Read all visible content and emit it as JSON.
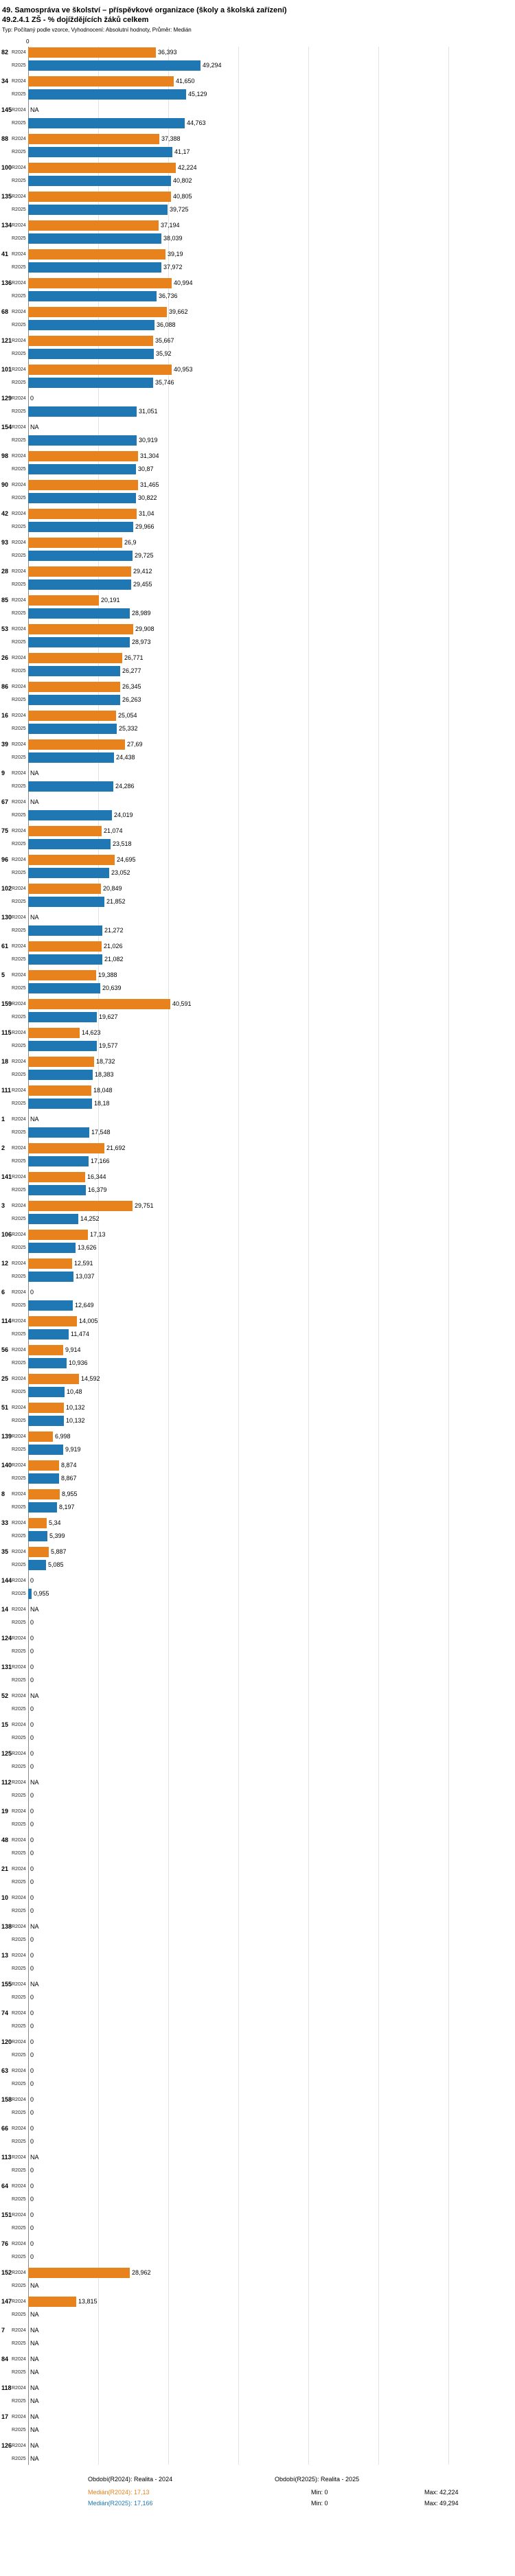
{
  "header": {
    "title_line1": "49. Samospráva ve školství – příspěvkové organizace (školy a školská zařízení)",
    "title_line2": "49.2.4.1 ZŠ - % dojíždějících žáků celkem",
    "subtitle": "Typ: Počítaný podle vzorce, Vyhodnocení: Absolutní hodnoty, Průměr: Medián"
  },
  "colors": {
    "r2024": "#e8821c",
    "r2025": "#1f77b4"
  },
  "chart_data": {
    "type": "bar",
    "orientation": "horizontal",
    "title": "49.2.4.1 ZŠ - % dojíždějících žáků celkem",
    "series_labels": [
      "R2024",
      "R2025"
    ],
    "axis_zero_label": "0",
    "na_label": "NA",
    "xlim": [
      0,
      50
    ],
    "sorted_by": "R2025 descending, NA last",
    "value_format": "czech decimal comma",
    "rows": [
      {
        "id": "82",
        "r2024": "36,393",
        "r2025": "49,294"
      },
      {
        "id": "34",
        "r2024": "41,650",
        "r2025": "45,129"
      },
      {
        "id": "145",
        "r2024": "NA",
        "r2025": "44,763"
      },
      {
        "id": "88",
        "r2024": "37,388",
        "r2025": "41,17"
      },
      {
        "id": "100",
        "r2024": "42,224",
        "r2025": "40,802"
      },
      {
        "id": "135",
        "r2024": "40,805",
        "r2025": "39,725"
      },
      {
        "id": "134",
        "r2024": "37,194",
        "r2025": "38,039"
      },
      {
        "id": "41",
        "r2024": "39,19",
        "r2025": "37,972"
      },
      {
        "id": "136",
        "r2024": "40,994",
        "r2025": "36,736"
      },
      {
        "id": "68",
        "r2024": "39,662",
        "r2025": "36,088"
      },
      {
        "id": "121",
        "r2024": "35,667",
        "r2025": "35,92"
      },
      {
        "id": "101",
        "r2024": "40,953",
        "r2025": "35,746"
      },
      {
        "id": "129",
        "r2024": "0",
        "r2025": "31,051"
      },
      {
        "id": "154",
        "r2024": "NA",
        "r2025": "30,919"
      },
      {
        "id": "98",
        "r2024": "31,304",
        "r2025": "30,87"
      },
      {
        "id": "90",
        "r2024": "31,465",
        "r2025": "30,822"
      },
      {
        "id": "42",
        "r2024": "31,04",
        "r2025": "29,966"
      },
      {
        "id": "93",
        "r2024": "26,9",
        "r2025": "29,725"
      },
      {
        "id": "28",
        "r2024": "29,412",
        "r2025": "29,455"
      },
      {
        "id": "85",
        "r2024": "20,191",
        "r2025": "28,989"
      },
      {
        "id": "53",
        "r2024": "29,908",
        "r2025": "28,973"
      },
      {
        "id": "26",
        "r2024": "26,771",
        "r2025": "26,277"
      },
      {
        "id": "86",
        "r2024": "26,345",
        "r2025": "26,263"
      },
      {
        "id": "16",
        "r2024": "25,054",
        "r2025": "25,332"
      },
      {
        "id": "39",
        "r2024": "27,69",
        "r2025": "24,438"
      },
      {
        "id": "9",
        "r2024": "NA",
        "r2025": "24,286"
      },
      {
        "id": "67",
        "r2024": "NA",
        "r2025": "24,019"
      },
      {
        "id": "75",
        "r2024": "21,074",
        "r2025": "23,518"
      },
      {
        "id": "96",
        "r2024": "24,695",
        "r2025": "23,052"
      },
      {
        "id": "102",
        "r2024": "20,849",
        "r2025": "21,852"
      },
      {
        "id": "130",
        "r2024": "NA",
        "r2025": "21,272"
      },
      {
        "id": "61",
        "r2024": "21,026",
        "r2025": "21,082"
      },
      {
        "id": "5",
        "r2024": "19,388",
        "r2025": "20,639"
      },
      {
        "id": "159",
        "r2024": "40,591",
        "r2025": "19,627"
      },
      {
        "id": "115",
        "r2024": "14,623",
        "r2025": "19,577"
      },
      {
        "id": "18",
        "r2024": "18,732",
        "r2025": "18,383"
      },
      {
        "id": "111",
        "r2024": "18,048",
        "r2025": "18,18"
      },
      {
        "id": "1",
        "r2024": "NA",
        "r2025": "17,548"
      },
      {
        "id": "2",
        "r2024": "21,692",
        "r2025": "17,166"
      },
      {
        "id": "141",
        "r2024": "16,344",
        "r2025": "16,379"
      },
      {
        "id": "3",
        "r2024": "29,751",
        "r2025": "14,252"
      },
      {
        "id": "106",
        "r2024": "17,13",
        "r2025": "13,626"
      },
      {
        "id": "12",
        "r2024": "12,591",
        "r2025": "13,037"
      },
      {
        "id": "6",
        "r2024": "0",
        "r2025": "12,649"
      },
      {
        "id": "114",
        "r2024": "14,005",
        "r2025": "11,474"
      },
      {
        "id": "56",
        "r2024": "9,914",
        "r2025": "10,936"
      },
      {
        "id": "25",
        "r2024": "14,592",
        "r2025": "10,48"
      },
      {
        "id": "51",
        "r2024": "10,132",
        "r2025": "10,132"
      },
      {
        "id": "139",
        "r2024": "6,998",
        "r2025": "9,919"
      },
      {
        "id": "140",
        "r2024": "8,874",
        "r2025": "8,867"
      },
      {
        "id": "8",
        "r2024": "8,955",
        "r2025": "8,197"
      },
      {
        "id": "33",
        "r2024": "5,34",
        "r2025": "5,399"
      },
      {
        "id": "35",
        "r2024": "5,887",
        "r2025": "5,085"
      },
      {
        "id": "144",
        "r2024": "0",
        "r2025": "0,955"
      },
      {
        "id": "14",
        "r2024": "NA",
        "r2025": "0"
      },
      {
        "id": "124",
        "r2024": "0",
        "r2025": "0"
      },
      {
        "id": "131",
        "r2024": "0",
        "r2025": "0"
      },
      {
        "id": "52",
        "r2024": "NA",
        "r2025": "0"
      },
      {
        "id": "15",
        "r2024": "0",
        "r2025": "0"
      },
      {
        "id": "125",
        "r2024": "0",
        "r2025": "0"
      },
      {
        "id": "112",
        "r2024": "NA",
        "r2025": "0"
      },
      {
        "id": "19",
        "r2024": "0",
        "r2025": "0"
      },
      {
        "id": "48",
        "r2024": "0",
        "r2025": "0"
      },
      {
        "id": "21",
        "r2024": "0",
        "r2025": "0"
      },
      {
        "id": "10",
        "r2024": "0",
        "r2025": "0"
      },
      {
        "id": "138",
        "r2024": "NA",
        "r2025": "0"
      },
      {
        "id": "13",
        "r2024": "0",
        "r2025": "0"
      },
      {
        "id": "155",
        "r2024": "NA",
        "r2025": "0"
      },
      {
        "id": "74",
        "r2024": "0",
        "r2025": "0"
      },
      {
        "id": "120",
        "r2024": "0",
        "r2025": "0"
      },
      {
        "id": "63",
        "r2024": "0",
        "r2025": "0"
      },
      {
        "id": "158",
        "r2024": "0",
        "r2025": "0"
      },
      {
        "id": "66",
        "r2024": "0",
        "r2025": "0"
      },
      {
        "id": "113",
        "r2024": "NA",
        "r2025": "0"
      },
      {
        "id": "64",
        "r2024": "0",
        "r2025": "0"
      },
      {
        "id": "151",
        "r2024": "0",
        "r2025": "0"
      },
      {
        "id": "76",
        "r2024": "0",
        "r2025": "0"
      },
      {
        "id": "152",
        "r2024": "28,962",
        "r2025": "NA"
      },
      {
        "id": "147",
        "r2024": "13,815",
        "r2025": "NA"
      },
      {
        "id": "7",
        "r2024": "NA",
        "r2025": "NA"
      },
      {
        "id": "84",
        "r2024": "NA",
        "r2025": "NA"
      },
      {
        "id": "118",
        "r2024": "NA",
        "r2025": "NA"
      },
      {
        "id": "17",
        "r2024": "NA",
        "r2025": "NA"
      },
      {
        "id": "126",
        "r2024": "NA",
        "r2025": "NA"
      }
    ]
  },
  "footer": {
    "legend_r2024": "Období(R2024): Realita - 2024",
    "legend_r2025": "Období(R2025): Realita - 2025",
    "median_r2024": "Medián(R2024): 17,13",
    "median_r2025": "Medián(R2025): 17,166",
    "min_r2024": "Min: 0",
    "max_r2024": "Max: 42,224",
    "min_r2025": "Min: 0",
    "max_r2025": "Max: 49,294"
  }
}
